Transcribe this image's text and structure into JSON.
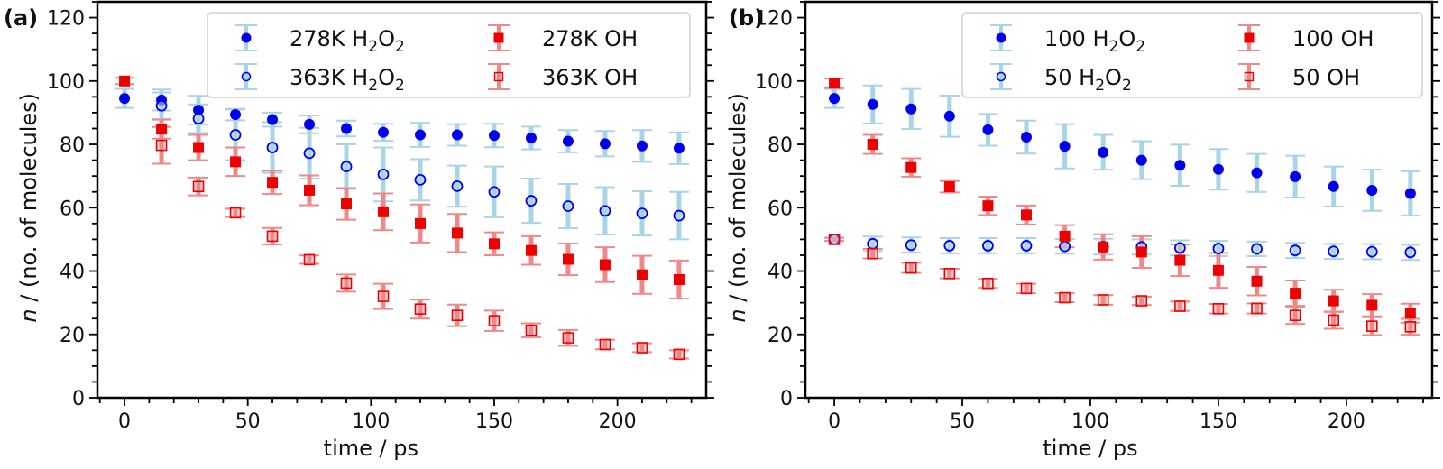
{
  "chart_data": [
    {
      "type": "scatter",
      "panel_label": "(a)",
      "title": "",
      "xlabel": "time / ps",
      "ylabel_italic": "n",
      "ylabel_rest": " / (no. of molecules)",
      "xlim": [
        -11,
        236
      ],
      "ylim": [
        0,
        125
      ],
      "xticks": [
        0,
        50,
        100,
        150,
        200
      ],
      "xtick_labels": [
        "0",
        "50",
        "100",
        "150",
        "200"
      ],
      "xminor_step": 10,
      "yticks": [
        0,
        20,
        40,
        60,
        80,
        100,
        120
      ],
      "ytick_labels": [
        "0",
        "20",
        "40",
        "60",
        "80",
        "100",
        "120"
      ],
      "yminor_step": 5,
      "grid": false,
      "legend": {
        "placement": "top-right",
        "ncol": 2
      },
      "x": [
        0,
        15,
        30,
        45,
        60,
        75,
        90,
        105,
        120,
        135,
        150,
        165,
        180,
        195,
        210,
        225
      ],
      "series": [
        {
          "name": "278K H2O2",
          "label_main": "278K H",
          "label_sub1": "2",
          "label_mid": "O",
          "label_sub2": "2",
          "marker": "circle",
          "filled": true,
          "color": "#0000ee",
          "ecolor": "#a8d4e6",
          "values": [
            94.5,
            94,
            90.8,
            89.4,
            87.8,
            86.3,
            85,
            83.8,
            83,
            83,
            82.8,
            82,
            81,
            80.2,
            79.5,
            78.8
          ],
          "errors": [
            3,
            3.3,
            4.5,
            1.8,
            2.2,
            2.8,
            2.5,
            2.7,
            3.8,
            3.4,
            3.7,
            3.6,
            3.5,
            4,
            5,
            5
          ]
        },
        {
          "name": "363K H2O2",
          "label_main": "363K H",
          "label_sub1": "2",
          "label_mid": "O",
          "label_sub2": "2",
          "marker": "circle",
          "filled": false,
          "color": "#0000ee",
          "ecolor": "#a8d4e6",
          "values": [
            null,
            92.2,
            88.1,
            83,
            79,
            77.2,
            73,
            70.5,
            68.8,
            66.8,
            65,
            62.2,
            60.5,
            59,
            58.2,
            57.5
          ],
          "errors": [
            0,
            4.2,
            4.5,
            8,
            8,
            8,
            7,
            8.5,
            6.5,
            6.5,
            8,
            7,
            7,
            7.5,
            7,
            7.5
          ]
        },
        {
          "name": "278K OH",
          "label_main": "278K OH",
          "label_sub1": "",
          "label_mid": "",
          "label_sub2": "",
          "marker": "square",
          "filled": true,
          "color": "#ee0000",
          "ecolor": "#ec8a8a",
          "values": [
            100,
            84.8,
            79,
            74.5,
            68,
            65.5,
            61.2,
            58.7,
            55,
            52,
            48.6,
            46.5,
            43.7,
            42,
            38.8,
            37.3
          ],
          "errors": [
            1,
            3,
            4,
            4.5,
            3.7,
            4.7,
            5,
            5.8,
            6,
            6,
            3.6,
            4.5,
            5,
            5.5,
            6,
            6
          ]
        },
        {
          "name": "363K OH",
          "label_main": "363K  OH",
          "label_sub1": "",
          "label_mid": "",
          "label_sub2": "",
          "marker": "square",
          "filled": false,
          "color": "#ee0000",
          "ecolor": "#ec8a8a",
          "values": [
            null,
            79.7,
            66.7,
            58.4,
            51,
            43.6,
            36.2,
            32,
            28,
            26,
            24.3,
            21.3,
            18.9,
            16.8,
            15.8,
            13.7
          ],
          "errors": [
            0,
            5.8,
            2.8,
            1.3,
            2.6,
            1.3,
            2.7,
            4,
            3,
            3.4,
            3.2,
            2.2,
            2.5,
            1.5,
            1.4,
            1.3
          ]
        }
      ]
    },
    {
      "type": "scatter",
      "panel_label": "(b)",
      "title": "",
      "xlabel": "time / ps",
      "ylabel_italic": "n",
      "ylabel_rest": " / (no. of molecules)",
      "xlim": [
        -11.3,
        233.5
      ],
      "ylim": [
        0,
        125
      ],
      "xticks": [
        0,
        50,
        100,
        150,
        200
      ],
      "xtick_labels": [
        "0",
        "50",
        "100",
        "150",
        "200"
      ],
      "xminor_step": 10,
      "yticks": [
        0,
        20,
        40,
        60,
        80,
        100,
        120
      ],
      "ytick_labels": [
        "0",
        "20",
        "40",
        "60",
        "80",
        "100",
        "120"
      ],
      "yminor_step": 5,
      "grid": false,
      "legend": {
        "placement": "top-right",
        "ncol": 2
      },
      "x": [
        0,
        15,
        30,
        45,
        60,
        75,
        90,
        105,
        120,
        135,
        150,
        165,
        180,
        195,
        210,
        225
      ],
      "series": [
        {
          "name": "100 H2O2",
          "label_main": "100 H",
          "label_sub1": "2",
          "label_mid": "O",
          "label_sub2": "2",
          "marker": "circle",
          "filled": true,
          "color": "#0000ee",
          "ecolor": "#a8d4e6",
          "values": [
            94.5,
            92.6,
            91.2,
            88.9,
            84.6,
            82.3,
            79.4,
            77.5,
            75,
            73.4,
            72.1,
            71,
            69.8,
            66.7,
            65.5,
            64.5
          ],
          "errors": [
            3,
            6,
            6.3,
            6.5,
            5,
            5.2,
            7,
            5.5,
            6,
            6.5,
            6.4,
            6,
            6.6,
            6.3,
            6.5,
            7
          ]
        },
        {
          "name": "50 H2O2",
          "label_main": "50 H",
          "label_sub1": "2",
          "label_mid": "O",
          "label_sub2": "2",
          "marker": "circle",
          "filled": false,
          "color": "#0000ee",
          "ecolor": "#a8d4e6",
          "values": [
            50,
            48.6,
            48.2,
            48,
            48,
            48,
            47.8,
            47.7,
            47.6,
            47.3,
            47.1,
            47,
            46.5,
            46.2,
            46.1,
            45.9
          ],
          "errors": [
            0.5,
            2.3,
            2.4,
            2.4,
            2.4,
            2.4,
            2.3,
            2.5,
            2.4,
            2.4,
            2.4,
            2.3,
            2.4,
            2.4,
            2.4,
            2.4
          ]
        },
        {
          "name": "100 OH",
          "label_main": "100 OH",
          "label_sub1": "",
          "label_mid": "",
          "label_sub2": "",
          "marker": "square",
          "filled": true,
          "color": "#ee0000",
          "ecolor": "#ec8a8a",
          "values": [
            99.3,
            80,
            72.7,
            66.6,
            60.6,
            57.7,
            51,
            47.6,
            46,
            43.4,
            40.2,
            36.8,
            33,
            30.6,
            29.2,
            26.7
          ],
          "errors": [
            1.5,
            3,
            2.9,
            1.8,
            2.9,
            3,
            3.5,
            4,
            5,
            5,
            5.5,
            4.5,
            4,
            3.5,
            3.5,
            3
          ]
        },
        {
          "name": "50 OH",
          "label_main": "50 OH",
          "label_sub1": "",
          "label_mid": "",
          "label_sub2": "",
          "marker": "square",
          "filled": false,
          "color": "#ee0000",
          "ecolor": "#ec8a8a",
          "values": [
            50,
            45.5,
            41,
            39.2,
            36.1,
            34.5,
            31.6,
            30.9,
            30.6,
            28.9,
            28.1,
            28.2,
            26,
            24.5,
            22.6,
            22.4
          ],
          "errors": [
            0.5,
            1.5,
            1.6,
            1.5,
            1.4,
            1.5,
            1.4,
            1.5,
            1.3,
            1.5,
            1.5,
            1.6,
            2.7,
            2.7,
            2.8,
            2.5
          ]
        }
      ]
    }
  ]
}
